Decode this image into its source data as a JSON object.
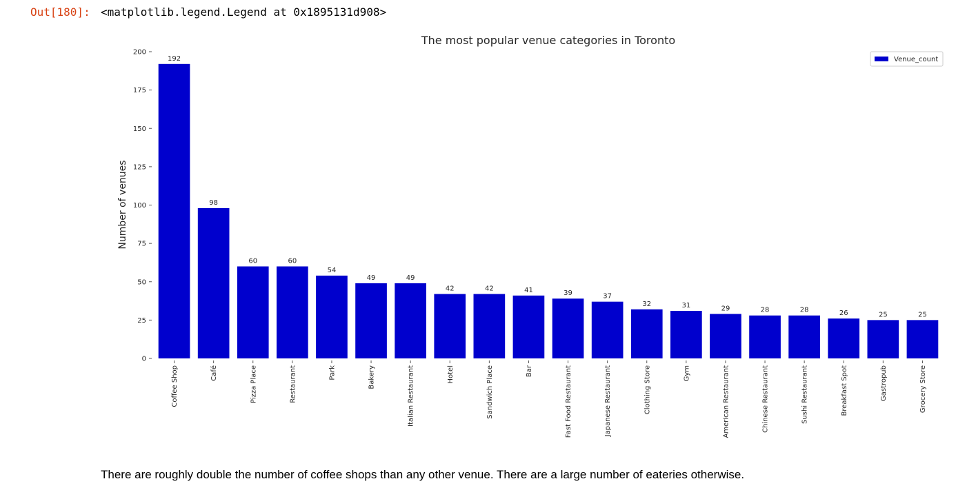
{
  "cell": {
    "out_prompt": "Out[180]:",
    "out_text": "<matplotlib.legend.Legend at 0x1895131d908>"
  },
  "chart_data": {
    "type": "bar",
    "title": "The most popular venue categories in Toronto",
    "ylabel": "Number of venues",
    "xlabel": "",
    "ylim": [
      0,
      200
    ],
    "yticks": [
      0,
      25,
      50,
      75,
      100,
      125,
      150,
      175,
      200
    ],
    "grid": false,
    "legend_position": "top-right",
    "bar_color": "#0000cd",
    "categories": [
      "Coffee Shop",
      "Café",
      "Pizza Place",
      "Restaurant",
      "Park",
      "Bakery",
      "Italian Restaurant",
      "Hotel",
      "Sandwich Place",
      "Bar",
      "Fast Food Restaurant",
      "Japanese Restaurant",
      "Clothing Store",
      "Gym",
      "American Restaurant",
      "Chinese Restaurant",
      "Sushi Restaurant",
      "Breakfast Spot",
      "Gastropub",
      "Grocery Store"
    ],
    "series": [
      {
        "name": "Venue_count",
        "values": [
          192,
          98,
          60,
          60,
          54,
          49,
          49,
          42,
          42,
          41,
          39,
          37,
          32,
          31,
          29,
          28,
          28,
          26,
          25,
          25
        ]
      }
    ]
  },
  "markdown": {
    "text": "There are roughly double the number of coffee shops than any other venue. There are a large number of eateries otherwise."
  }
}
